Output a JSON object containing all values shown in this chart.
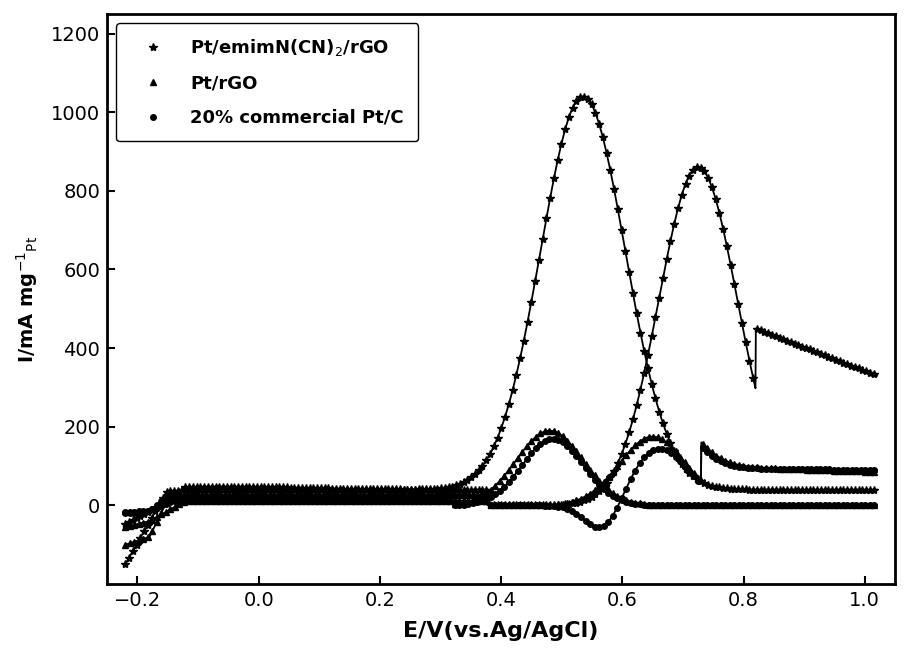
{
  "title": "",
  "xlabel": "E/V(vs.Ag/AgCl)",
  "ylabel": "I/mA mg$^{-1}$$_{Pt}$",
  "xlim": [
    -0.25,
    1.05
  ],
  "ylim": [
    -200,
    1250
  ],
  "yticks": [
    0,
    200,
    400,
    600,
    800,
    1000,
    1200
  ],
  "xticks": [
    -0.2,
    0.0,
    0.2,
    0.4,
    0.6,
    0.8,
    1.0
  ],
  "legend": [
    "Pt/emimN(CN)$_2$/rGO",
    "Pt/rGO",
    "20% commercial Pt/C"
  ],
  "line_color": "#000000",
  "background_color": "#ffffff",
  "figsize": [
    9.09,
    6.55
  ],
  "dpi": 100
}
